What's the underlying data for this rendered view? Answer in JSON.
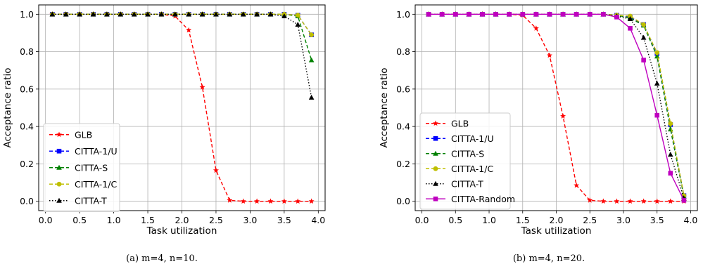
{
  "chart_data": [
    {
      "type": "line",
      "caption": "(a)  m=4, n=10.",
      "xlabel": "Task utilization",
      "ylabel": "Acceptance ratio",
      "xlim": [
        -0.1,
        4.1
      ],
      "ylim": [
        -0.05,
        1.05
      ],
      "xticks": [
        0.0,
        0.5,
        1.0,
        1.5,
        2.0,
        2.5,
        3.0,
        3.5,
        4.0
      ],
      "xtick_labels": [
        "0.0",
        "0.5",
        "1.0",
        "1.5",
        "2.0",
        "2.5",
        "3.0",
        "3.5",
        "4.0"
      ],
      "yticks": [
        0.0,
        0.2,
        0.4,
        0.6,
        0.8,
        1.0
      ],
      "ytick_labels": [
        "0.0",
        "0.2",
        "0.4",
        "0.6",
        "0.8",
        "1.0"
      ],
      "grid": true,
      "legend_position": "lower-left",
      "x": [
        0.1,
        0.3,
        0.5,
        0.7,
        0.9,
        1.1,
        1.3,
        1.5,
        1.7,
        1.9,
        2.1,
        2.3,
        2.5,
        2.7,
        2.9,
        3.1,
        3.3,
        3.5,
        3.7,
        3.9
      ],
      "series": [
        {
          "name": "GLB",
          "color": "#ff0000",
          "dash": "dashed",
          "marker": "star",
          "values": [
            1,
            1,
            1,
            1,
            1,
            1,
            1,
            1,
            1,
            0.99,
            0.915,
            0.61,
            0.165,
            0.005,
            0,
            0,
            0,
            0,
            0,
            0
          ]
        },
        {
          "name": "CITTA-1/U",
          "color": "#0000ff",
          "dash": "dashed",
          "marker": "square",
          "values": [
            1,
            1,
            1,
            1,
            1,
            1,
            1,
            1,
            1,
            1,
            1,
            1,
            1,
            1,
            1,
            1,
            1,
            1,
            0.995,
            0.89
          ]
        },
        {
          "name": "CITTA-S",
          "color": "#008000",
          "dash": "dashed",
          "marker": "triangle",
          "values": [
            1,
            1,
            1,
            1,
            1,
            1,
            1,
            1,
            1,
            1,
            1,
            1,
            1,
            1,
            1,
            1,
            1,
            1,
            0.99,
            0.755
          ]
        },
        {
          "name": "CITTA-1/C",
          "color": "#bfbf00",
          "dash": "dashed",
          "marker": "circle",
          "values": [
            1,
            1,
            1,
            1,
            1,
            1,
            1,
            1,
            1,
            1,
            1,
            1,
            1,
            1,
            1,
            1,
            1,
            1,
            0.995,
            0.89
          ]
        },
        {
          "name": "CITTA-T",
          "color": "#000000",
          "dash": "dotted",
          "marker": "triangle",
          "values": [
            1,
            1,
            1,
            1,
            1,
            1,
            1,
            1,
            1,
            1,
            1,
            1,
            1,
            1,
            1,
            1,
            1,
            0.99,
            0.945,
            0.555
          ]
        }
      ]
    },
    {
      "type": "line",
      "caption": "(b)  m=4, n=20.",
      "xlabel": "Task utilization",
      "ylabel": "Acceptance ratio",
      "xlim": [
        -0.1,
        4.1
      ],
      "ylim": [
        -0.05,
        1.05
      ],
      "xticks": [
        0.0,
        0.5,
        1.0,
        1.5,
        2.0,
        2.5,
        3.0,
        3.5,
        4.0
      ],
      "xtick_labels": [
        "0.0",
        "0.5",
        "1.0",
        "1.5",
        "2.0",
        "2.5",
        "3.0",
        "3.5",
        "4.0"
      ],
      "yticks": [
        0.0,
        0.2,
        0.4,
        0.6,
        0.8,
        1.0
      ],
      "ytick_labels": [
        "0.0",
        "0.2",
        "0.4",
        "0.6",
        "0.8",
        "1.0"
      ],
      "grid": true,
      "legend_position": "lower-left",
      "x": [
        0.1,
        0.3,
        0.5,
        0.7,
        0.9,
        1.1,
        1.3,
        1.5,
        1.7,
        1.9,
        2.1,
        2.3,
        2.5,
        2.7,
        2.9,
        3.1,
        3.3,
        3.5,
        3.7,
        3.9
      ],
      "series": [
        {
          "name": "GLB",
          "color": "#ff0000",
          "dash": "dashed",
          "marker": "star",
          "values": [
            1,
            1,
            1,
            1,
            1,
            1,
            1,
            0.995,
            0.925,
            0.78,
            0.455,
            0.085,
            0.005,
            0,
            0,
            0,
            0,
            0,
            0,
            0
          ]
        },
        {
          "name": "CITTA-1/U",
          "color": "#0000ff",
          "dash": "dashed",
          "marker": "square",
          "values": [
            1,
            1,
            1,
            1,
            1,
            1,
            1,
            1,
            1,
            1,
            1,
            1,
            1,
            1,
            0.995,
            0.985,
            0.945,
            0.79,
            0.41,
            0.03
          ]
        },
        {
          "name": "CITTA-S",
          "color": "#008000",
          "dash": "dashed",
          "marker": "triangle",
          "values": [
            1,
            1,
            1,
            1,
            1,
            1,
            1,
            1,
            1,
            1,
            1,
            1,
            1,
            1,
            0.995,
            0.98,
            0.94,
            0.775,
            0.385,
            0.025
          ]
        },
        {
          "name": "CITTA-1/C",
          "color": "#bfbf00",
          "dash": "dashed",
          "marker": "circle",
          "values": [
            1,
            1,
            1,
            1,
            1,
            1,
            1,
            1,
            1,
            1,
            1,
            1,
            1,
            1,
            0.995,
            0.99,
            0.945,
            0.795,
            0.415,
            0.03
          ]
        },
        {
          "name": "CITTA-T",
          "color": "#000000",
          "dash": "dotted",
          "marker": "triangle",
          "values": [
            1,
            1,
            1,
            1,
            1,
            1,
            1,
            1,
            1,
            1,
            1,
            1,
            1,
            1,
            0.99,
            0.975,
            0.875,
            0.63,
            0.25,
            0.015
          ]
        },
        {
          "name": "CITTA-Random",
          "color": "#bf00bf",
          "dash": "solid",
          "marker": "square",
          "values": [
            1,
            1,
            1,
            1,
            1,
            1,
            1,
            1,
            1,
            1,
            1,
            1,
            1,
            1,
            0.985,
            0.925,
            0.755,
            0.46,
            0.15,
            0.005
          ]
        }
      ]
    }
  ]
}
